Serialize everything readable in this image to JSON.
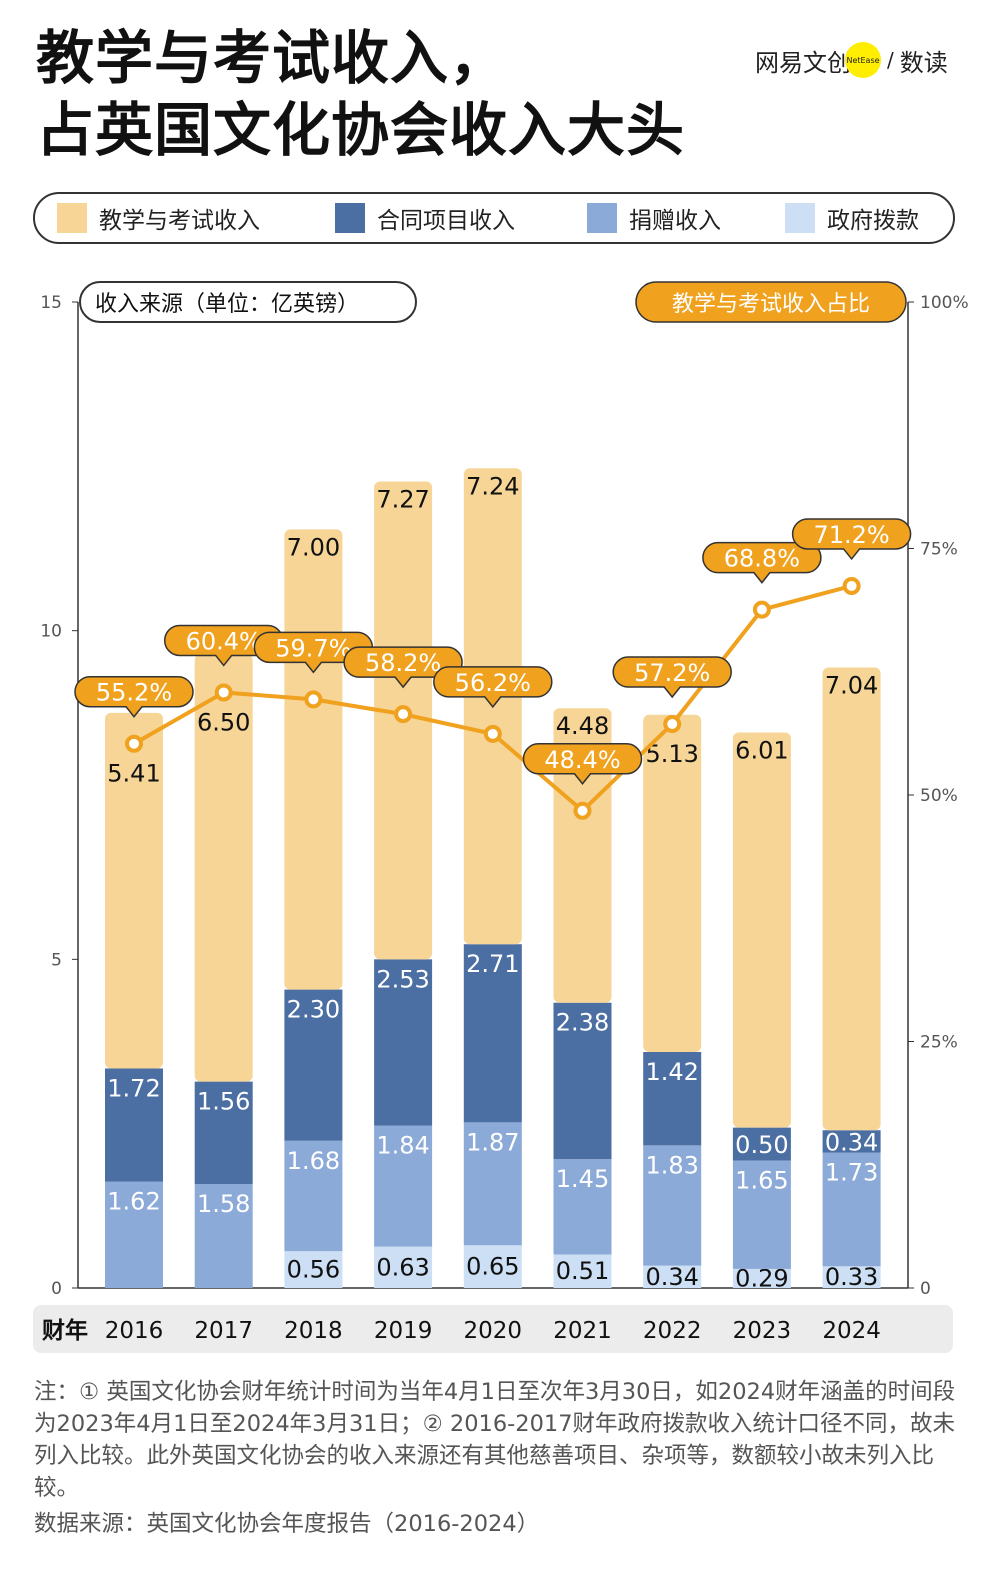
{
  "title_lines": [
    "教学与考试收入，",
    "占英国文化协会收入大头"
  ],
  "logo": {
    "brand": "网易文创",
    "badge": "NetEase",
    "sep": "/",
    "column": "数读"
  },
  "chart_data": {
    "type": "bar",
    "stacked": true,
    "categories": [
      "2016",
      "2017",
      "2018",
      "2019",
      "2020",
      "2021",
      "2022",
      "2023",
      "2024"
    ],
    "x_prefix": "财年",
    "left_axis": {
      "label": "收入来源（单位：亿英镑）",
      "ylim": [
        0,
        15
      ],
      "ticks": [
        0,
        5,
        10,
        15
      ]
    },
    "right_axis": {
      "label": "教学与考试收入占比",
      "ylim": [
        0,
        100
      ],
      "ticks": [
        "0",
        "25%",
        "50%",
        "75%",
        "100%"
      ]
    },
    "series": [
      {
        "name": "政府拨款",
        "color": "#CCDFF4",
        "values": [
          null,
          null,
          0.56,
          0.63,
          0.65,
          0.51,
          0.34,
          0.29,
          0.33
        ]
      },
      {
        "name": "捐赠收入",
        "color": "#8CAAD8",
        "values": [
          1.62,
          1.58,
          1.68,
          1.84,
          1.87,
          1.45,
          1.83,
          1.65,
          1.73
        ]
      },
      {
        "name": "合同项目收入",
        "color": "#4B6EA3",
        "values": [
          1.72,
          1.56,
          2.3,
          2.53,
          2.71,
          2.38,
          1.42,
          0.5,
          0.34
        ]
      },
      {
        "name": "教学与考试收入",
        "color": "#F6D597",
        "values": [
          5.41,
          6.5,
          7.0,
          7.27,
          7.24,
          4.48,
          5.13,
          6.01,
          7.04
        ]
      }
    ],
    "line": {
      "name": "教学与考试收入占比",
      "color": "#F0A11E",
      "values": [
        55.2,
        60.4,
        59.7,
        58.2,
        56.2,
        48.4,
        57.2,
        68.8,
        71.2
      ],
      "labels": [
        "55.2%",
        "60.4%",
        "59.7%",
        "58.2%",
        "56.2%",
        "48.4%",
        "57.2%",
        "68.8%",
        "71.2%"
      ]
    },
    "legend_order": [
      "教学与考试收入",
      "合同项目收入",
      "捐赠收入",
      "政府拨款"
    ],
    "legend_position": "top"
  },
  "notes": "注：① 英国文化协会财年统计时间为当年4月1日至次年3月30日，如2024财年涵盖的时间段为2023年4月1日至2024年3月31日；② 2016-2017财年政府拨款收入统计口径不同，故未列入比较。此外英国文化协会的收入来源还有其他慈善项目、杂项等，数额较小故未列入比较。",
  "source": "数据来源：英国文化协会年度报告（2016-2024）"
}
